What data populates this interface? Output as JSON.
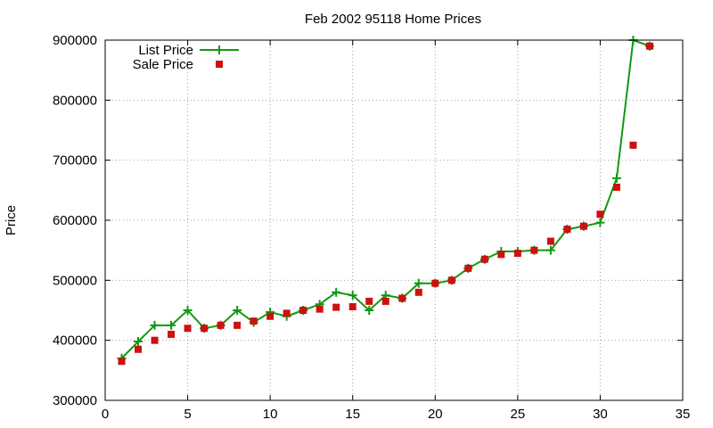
{
  "chart_data": {
    "type": "line",
    "title": "Feb 2002 95118 Home Prices",
    "xlabel": "",
    "ylabel": "Price",
    "xlim": [
      0,
      35
    ],
    "ylim": [
      300000,
      900000
    ],
    "xticks": [
      0,
      5,
      10,
      15,
      20,
      25,
      30,
      35
    ],
    "yticks": [
      300000,
      400000,
      500000,
      600000,
      700000,
      800000,
      900000
    ],
    "grid": true,
    "legend_position": "top-left",
    "series": [
      {
        "name": "List Price",
        "style": "line-plus",
        "color": "#119911",
        "x": [
          1,
          2,
          3,
          4,
          5,
          6,
          7,
          8,
          9,
          10,
          11,
          12,
          13,
          14,
          15,
          16,
          17,
          18,
          19,
          20,
          21,
          22,
          23,
          24,
          25,
          26,
          27,
          28,
          29,
          30,
          31,
          32,
          33
        ],
        "values": [
          370000,
          398000,
          425000,
          425000,
          450000,
          420000,
          425000,
          450000,
          430000,
          447000,
          440000,
          450000,
          460000,
          480000,
          475000,
          450000,
          475000,
          470000,
          495000,
          495000,
          500000,
          520000,
          535000,
          548000,
          548000,
          550000,
          550000,
          585000,
          590000,
          596000,
          670000,
          900000,
          890000
        ]
      },
      {
        "name": "Sale Price",
        "style": "square-marker",
        "color": "#cc1111",
        "x": [
          1,
          2,
          3,
          4,
          5,
          6,
          7,
          8,
          9,
          10,
          11,
          12,
          13,
          14,
          15,
          16,
          17,
          18,
          19,
          20,
          21,
          22,
          23,
          24,
          25,
          26,
          27,
          28,
          29,
          30,
          31,
          32,
          33
        ],
        "values": [
          365000,
          385000,
          400000,
          410000,
          420000,
          420000,
          425000,
          425000,
          432000,
          440000,
          445000,
          450000,
          452000,
          455000,
          456000,
          465000,
          465000,
          470000,
          480000,
          495000,
          500000,
          520000,
          535000,
          543000,
          545000,
          550000,
          565000,
          585000,
          590000,
          610000,
          655000,
          725000,
          890000
        ]
      }
    ]
  }
}
